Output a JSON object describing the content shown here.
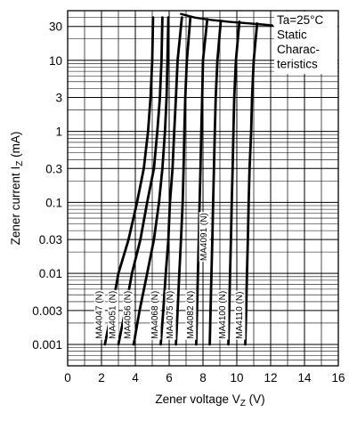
{
  "chart_data": {
    "type": "line",
    "xlabel": "Zener voltage",
    "xlabel_symbol": "V",
    "xlabel_sub": "Z",
    "xlabel_unit": "(V)",
    "ylabel": "Zener current",
    "ylabel_symbol": "I",
    "ylabel_sub": "Z",
    "ylabel_unit": "(mA)",
    "x_ticks": [
      0,
      2,
      4,
      6,
      8,
      10,
      12,
      14,
      16
    ],
    "y_ticks": [
      {
        "value": 30,
        "label": "30"
      },
      {
        "value": 10,
        "label": "10"
      },
      {
        "value": 3,
        "label": "3"
      },
      {
        "value": 1,
        "label": "1"
      },
      {
        "value": 0.3,
        "label": "0.3"
      },
      {
        "value": 0.1,
        "label": "0.1"
      },
      {
        "value": 0.03,
        "label": "0.03"
      },
      {
        "value": 0.01,
        "label": "0.01"
      },
      {
        "value": 0.003,
        "label": "0.003"
      },
      {
        "value": 0.001,
        "label": "0.001"
      }
    ],
    "xlim": [
      0,
      16
    ],
    "ylim": [
      0.0005,
      50
    ],
    "y_scale": "log",
    "grid": true,
    "annotation": [
      "Ta=25°C",
      "Static",
      "Charac-",
      "teristics"
    ],
    "series": [
      {
        "name": "MA4047 (N)",
        "points": [
          [
            2.2,
            0.001
          ],
          [
            2.6,
            0.003
          ],
          [
            3.0,
            0.01
          ],
          [
            3.6,
            0.03
          ],
          [
            4.1,
            0.1
          ],
          [
            4.5,
            0.3
          ],
          [
            4.75,
            1
          ],
          [
            4.9,
            3
          ],
          [
            5.0,
            10
          ],
          [
            5.05,
            40
          ]
        ]
      },
      {
        "name": "MA4051 (N)",
        "points": [
          [
            3.0,
            0.001
          ],
          [
            3.4,
            0.003
          ],
          [
            3.8,
            0.01
          ],
          [
            4.3,
            0.03
          ],
          [
            4.7,
            0.1
          ],
          [
            5.1,
            0.3
          ],
          [
            5.3,
            1
          ],
          [
            5.45,
            3
          ],
          [
            5.55,
            10
          ],
          [
            5.6,
            40
          ]
        ]
      },
      {
        "name": "MA4056 (N)",
        "points": [
          [
            3.9,
            0.001
          ],
          [
            4.25,
            0.003
          ],
          [
            4.7,
            0.01
          ],
          [
            5.1,
            0.03
          ],
          [
            5.4,
            0.1
          ],
          [
            5.6,
            0.3
          ],
          [
            5.75,
            1
          ],
          [
            5.85,
            3
          ],
          [
            5.9,
            10
          ],
          [
            5.95,
            40
          ]
        ]
      },
      {
        "name": "MA4068 (N)",
        "points": [
          [
            5.5,
            0.001
          ],
          [
            5.65,
            0.003
          ],
          [
            5.8,
            0.01
          ],
          [
            5.95,
            0.03
          ],
          [
            6.05,
            0.1
          ],
          [
            6.2,
            0.3
          ],
          [
            6.3,
            1
          ],
          [
            6.4,
            3
          ],
          [
            6.5,
            10
          ],
          [
            6.75,
            40
          ]
        ]
      },
      {
        "name": "MA4075 (N)",
        "points": [
          [
            6.4,
            0.001
          ],
          [
            6.5,
            0.003
          ],
          [
            6.6,
            0.01
          ],
          [
            6.7,
            0.03
          ],
          [
            6.8,
            0.1
          ],
          [
            6.85,
            0.3
          ],
          [
            6.9,
            1
          ],
          [
            6.95,
            3
          ],
          [
            7.05,
            10
          ],
          [
            7.25,
            40
          ]
        ]
      },
      {
        "name": "MA4082 (N)",
        "points": [
          [
            7.6,
            0.001
          ],
          [
            7.65,
            0.003
          ],
          [
            7.7,
            0.01
          ],
          [
            7.75,
            0.03
          ],
          [
            7.8,
            0.1
          ],
          [
            7.85,
            0.3
          ],
          [
            7.9,
            1
          ],
          [
            7.95,
            3
          ],
          [
            8.0,
            10
          ],
          [
            8.25,
            38
          ]
        ]
      },
      {
        "name": "MA4091 (N)",
        "points": [
          [
            8.4,
            0.001
          ],
          [
            8.45,
            0.003
          ],
          [
            8.5,
            0.01
          ],
          [
            8.55,
            0.03
          ],
          [
            8.6,
            0.1
          ],
          [
            8.65,
            0.3
          ],
          [
            8.7,
            1
          ],
          [
            8.75,
            3
          ],
          [
            8.85,
            10
          ],
          [
            9.05,
            36
          ]
        ]
      },
      {
        "name": "MA4100 (N)",
        "points": [
          [
            9.5,
            0.001
          ],
          [
            9.55,
            0.003
          ],
          [
            9.6,
            0.01
          ],
          [
            9.65,
            0.03
          ],
          [
            9.7,
            0.1
          ],
          [
            9.75,
            0.3
          ],
          [
            9.8,
            1
          ],
          [
            9.85,
            3
          ],
          [
            9.95,
            10
          ],
          [
            10.15,
            35
          ]
        ]
      },
      {
        "name": "MA4110 (N)",
        "points": [
          [
            10.5,
            0.001
          ],
          [
            10.55,
            0.003
          ],
          [
            10.6,
            0.01
          ],
          [
            10.65,
            0.03
          ],
          [
            10.7,
            0.1
          ],
          [
            10.75,
            0.3
          ],
          [
            10.85,
            1
          ],
          [
            10.9,
            3
          ],
          [
            11.0,
            10
          ],
          [
            11.2,
            33
          ]
        ]
      }
    ],
    "envelope": [
      [
        6.7,
        45
      ],
      [
        7.5,
        40
      ],
      [
        8.5,
        37
      ],
      [
        9.5,
        35
      ],
      [
        10.5,
        33.5
      ],
      [
        11.5,
        32
      ],
      [
        12.1,
        31
      ]
    ]
  }
}
